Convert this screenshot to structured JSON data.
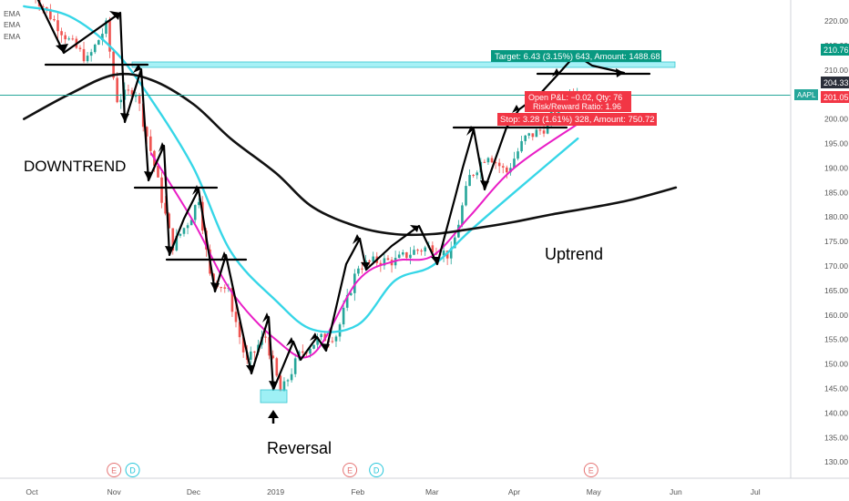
{
  "indicators": [
    "EMA",
    "EMA",
    "EMA"
  ],
  "annotations": {
    "downtrend": "DOWNTREND",
    "uptrend": "Uptrend",
    "reversal": "Reversal"
  },
  "trade": {
    "target_label": "Target: 6.43 (3.15%) 643, Amount: 1488.68",
    "open_pnl_label": "Open P&L: −0.02, Qty: 76",
    "risk_reward_label": "Risk/Reward Ratio: 1.96",
    "stop_label": "Stop: 3.28 (1.61%) 328, Amount: 750.72",
    "target_price": "210.76",
    "entry_price": "204.33",
    "stop_price": "201.05",
    "ticker": "AAPL"
  },
  "events": [
    {
      "label": "E",
      "date": "2018-11-01",
      "color": "#e57373"
    },
    {
      "label": "D",
      "date": "2018-11-08",
      "color": "#26c6da"
    },
    {
      "label": "E",
      "date": "2019-01-29",
      "color": "#e57373"
    },
    {
      "label": "D",
      "date": "2019-02-08",
      "color": "#26c6da"
    },
    {
      "label": "E",
      "date": "2019-04-30",
      "color": "#e57373"
    }
  ],
  "colors": {
    "ema_fast": "#e91ec6",
    "ema_mid": "#36d6e7",
    "ema_slow": "#111111",
    "target_green": "#089981",
    "stop_red": "#f23645",
    "zone_cyan": "#5ee6ee"
  },
  "chart_data": {
    "type": "line",
    "symbol": "AAPL",
    "x_axis_labels": [
      "Oct",
      "Nov",
      "Dec",
      "2019",
      "Feb",
      "Mar",
      "Apr",
      "May",
      "Jun",
      "Jul"
    ],
    "x_axis_dates": [
      "2018-10-01",
      "2018-11-01",
      "2018-12-01",
      "2019-01-01",
      "2019-02-01",
      "2019-03-01",
      "2019-04-01",
      "2019-05-01",
      "2019-06-01",
      "2019-07-01"
    ],
    "y_ticks": [
      130,
      135,
      140,
      145,
      150,
      155,
      160,
      165,
      170,
      175,
      180,
      185,
      190,
      195,
      200,
      205,
      210,
      215,
      220
    ],
    "ylim": [
      125.5,
      224.5
    ],
    "grid": false,
    "price_series": {
      "dates": [
        "2018-10-01",
        "2018-10-08",
        "2018-10-15",
        "2018-10-22",
        "2018-10-29",
        "2018-11-02",
        "2018-11-09",
        "2018-11-16",
        "2018-11-23",
        "2018-11-30",
        "2018-12-03",
        "2018-12-07",
        "2018-12-14",
        "2018-12-21",
        "2018-12-28",
        "2019-01-03",
        "2019-01-10",
        "2019-01-17",
        "2019-01-24",
        "2019-02-01",
        "2019-02-08",
        "2019-02-15",
        "2019-02-22",
        "2019-03-01",
        "2019-03-08",
        "2019-03-15",
        "2019-03-22",
        "2019-03-29",
        "2019-04-05",
        "2019-04-12",
        "2019-04-19",
        "2019-04-26"
      ],
      "close": [
        226,
        221,
        216,
        212,
        219,
        204,
        206,
        191,
        174,
        180,
        184,
        168,
        165,
        150,
        156,
        144,
        152,
        155,
        156,
        170,
        171,
        171,
        173,
        174,
        172,
        188,
        193,
        189,
        196,
        198,
        204,
        207
      ]
    },
    "series": [
      {
        "name": "EMA",
        "color": "#e91ec6",
        "dates": [
          "2018-11-15",
          "2018-12-01",
          "2018-12-15",
          "2019-01-01",
          "2019-01-15",
          "2019-02-01",
          "2019-02-15",
          "2019-03-01",
          "2019-03-15",
          "2019-04-01",
          "2019-04-25"
        ],
        "values": [
          193,
          179,
          165,
          155,
          152,
          167,
          171,
          172,
          180,
          190,
          199
        ]
      },
      {
        "name": "EMA",
        "color": "#36d6e7",
        "dates": [
          "2018-09-28",
          "2018-10-15",
          "2018-11-01",
          "2018-11-15",
          "2018-12-01",
          "2018-12-15",
          "2019-01-01",
          "2019-01-15",
          "2019-02-01",
          "2019-02-15",
          "2019-03-01",
          "2019-03-15",
          "2019-04-01",
          "2019-04-25"
        ],
        "values": [
          223,
          221,
          214,
          204,
          190,
          173,
          163,
          157,
          158,
          167,
          170,
          177,
          185,
          196
        ]
      },
      {
        "name": "EMA",
        "color": "#111111",
        "dates": [
          "2018-09-28",
          "2018-10-15",
          "2018-11-01",
          "2018-11-15",
          "2018-12-01",
          "2018-12-15",
          "2019-01-01",
          "2019-01-15",
          "2019-02-01",
          "2019-02-15",
          "2019-03-01",
          "2019-03-15",
          "2019-04-01",
          "2019-04-15",
          "2019-05-01",
          "2019-05-15",
          "2019-06-01"
        ],
        "values": [
          200,
          205,
          209,
          208,
          203,
          196,
          189,
          182,
          178,
          176.5,
          176.5,
          177.5,
          179,
          180.5,
          182,
          183.5,
          186
        ]
      }
    ]
  }
}
